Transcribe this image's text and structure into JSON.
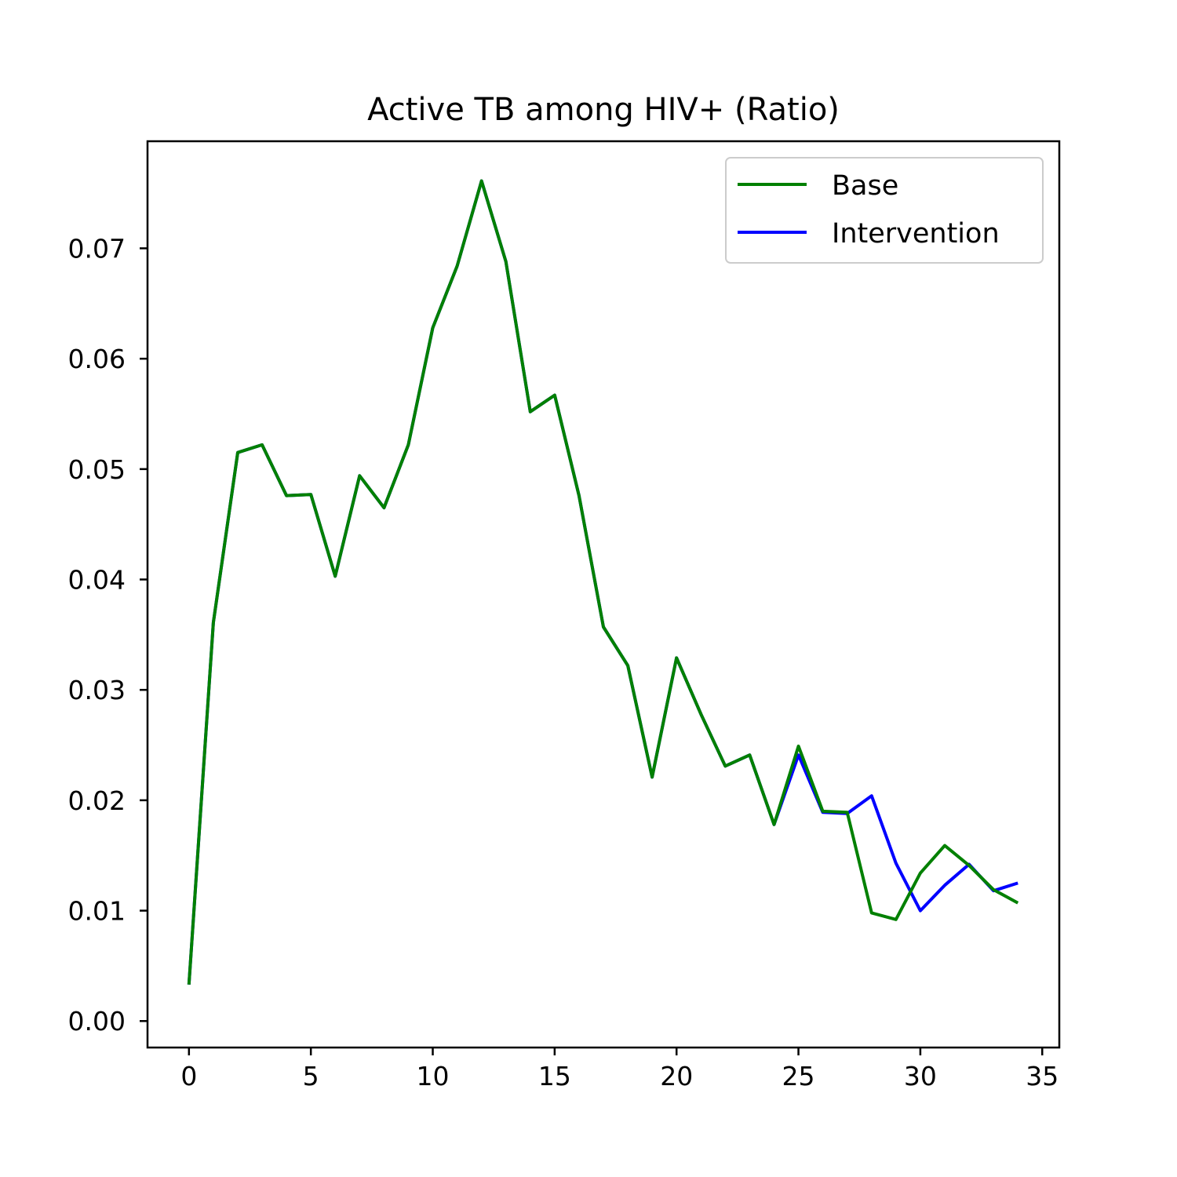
{
  "chart_data": {
    "type": "line",
    "title": "Active TB among HIV+ (Ratio)",
    "xlabel": "",
    "ylabel": "",
    "xlim": [
      -1.7,
      35.7
    ],
    "ylim": [
      -0.0024,
      0.0797
    ],
    "xticks": [
      0,
      5,
      10,
      15,
      20,
      25,
      30,
      35
    ],
    "xtick_labels": [
      "0",
      "5",
      "10",
      "15",
      "20",
      "25",
      "30",
      "35"
    ],
    "yticks": [
      0.0,
      0.01,
      0.02,
      0.03,
      0.04,
      0.05,
      0.06,
      0.07
    ],
    "ytick_labels": [
      "0.00",
      "0.01",
      "0.02",
      "0.03",
      "0.04",
      "0.05",
      "0.06",
      "0.07"
    ],
    "grid": false,
    "legend_position": "top-right",
    "x": [
      0,
      1,
      2,
      3,
      4,
      5,
      6,
      7,
      8,
      9,
      10,
      11,
      12,
      13,
      14,
      15,
      16,
      17,
      18,
      19,
      20,
      21,
      22,
      23,
      24,
      25,
      26,
      27,
      28,
      29,
      30,
      31,
      32,
      33,
      34
    ],
    "series": [
      {
        "name": "Base",
        "color": "#008000",
        "values": [
          0.0033,
          0.0361,
          0.0515,
          0.0522,
          0.0476,
          0.0477,
          0.0403,
          0.0494,
          0.0465,
          0.0522,
          0.0628,
          0.0684,
          0.0761,
          0.0688,
          0.0552,
          0.0567,
          0.0476,
          0.0357,
          0.0322,
          0.0221,
          0.0329,
          0.0278,
          0.0231,
          0.0241,
          0.0178,
          0.0249,
          0.019,
          0.0189,
          0.0098,
          0.0092,
          0.0134,
          0.0159,
          0.0141,
          0.0119,
          0.0107
        ]
      },
      {
        "name": "Intervention",
        "color": "#0000ff",
        "values": [
          0.0033,
          0.0361,
          0.0515,
          0.0522,
          0.0476,
          0.0477,
          0.0403,
          0.0494,
          0.0465,
          0.0522,
          0.0628,
          0.0684,
          0.0761,
          0.0688,
          0.0552,
          0.0567,
          0.0476,
          0.0357,
          0.0322,
          0.0221,
          0.0329,
          0.0278,
          0.0231,
          0.0241,
          0.0178,
          0.0241,
          0.0189,
          0.0188,
          0.0204,
          0.0143,
          0.01,
          0.0123,
          0.0142,
          0.0118,
          0.0125
        ]
      }
    ]
  }
}
